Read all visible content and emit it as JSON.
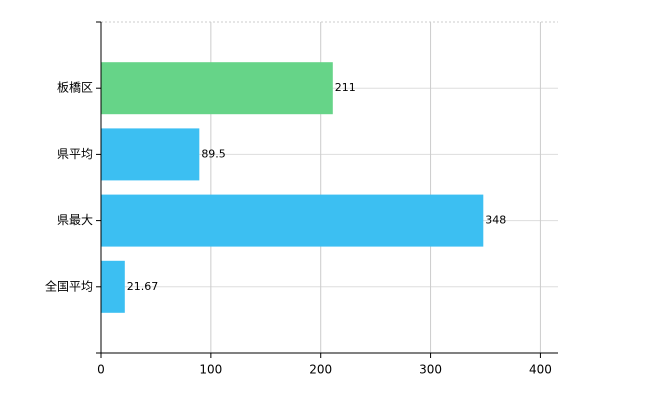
{
  "chart_data": {
    "type": "hbar",
    "categories": [
      "板橋区",
      "県平均",
      "県最大",
      "全国平均"
    ],
    "values": [
      211,
      89.5,
      348,
      21.67
    ],
    "colors": [
      "#66d488",
      "#3cbff2",
      "#3cbff2",
      "#3cbff2"
    ],
    "xlim": [
      0,
      416
    ],
    "xticks": [
      0,
      100,
      200,
      300,
      400
    ],
    "grid": true
  }
}
